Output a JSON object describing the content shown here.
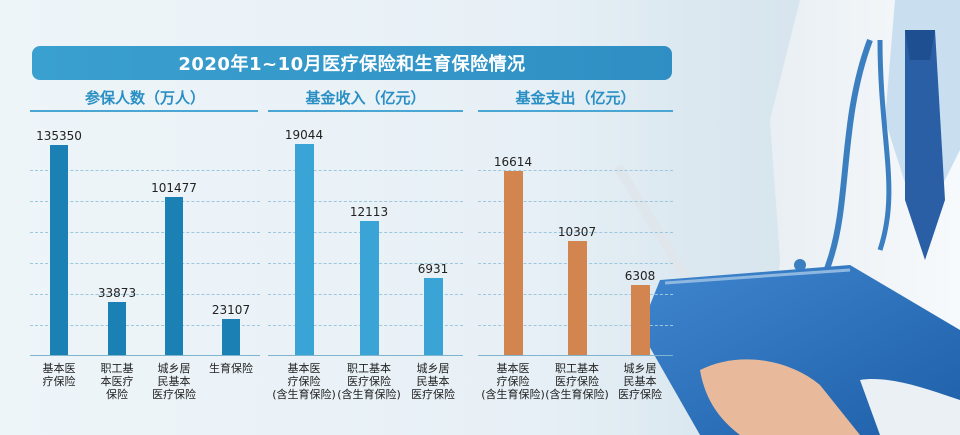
{
  "title": "2020年1~10月医疗保险和生育保险情况",
  "colors": {
    "blue_bar": "#1b80b4",
    "light_blue_bar": "#3aa4d6",
    "orange_bar": "#d2854e"
  },
  "chart_data": [
    {
      "type": "bar",
      "title": "参保人数（万人）",
      "categories": [
        "基本医\n疗保险",
        "职工基\n本医疗\n保险",
        "城乡居\n民基本\n医疗保险",
        "生育保险"
      ],
      "values": [
        135350,
        33873,
        101477,
        23107
      ],
      "value_labels": [
        "135350",
        "33873",
        "101477",
        "23107"
      ],
      "ylim": [
        0,
        150000
      ],
      "grid": true
    },
    {
      "type": "bar",
      "title": "基金收入（亿元）",
      "categories": [
        "基本医\n疗保险\n(含生育保险)",
        "职工基本\n医疗保险\n(含生育保险)",
        "城乡居\n民基本\n医疗保险"
      ],
      "values": [
        19044,
        12113,
        6931
      ],
      "value_labels": [
        "19044",
        "12113",
        "6931"
      ],
      "ylim": [
        0,
        21000
      ],
      "grid": true
    },
    {
      "type": "bar",
      "title": "基金支出（亿元）",
      "categories": [
        "基本医\n疗保险\n(含生育保险)",
        "职工基本\n医疗保险\n(含生育保险)",
        "城乡居\n民基本\n医疗保险"
      ],
      "values": [
        16614,
        10307,
        6308
      ],
      "value_labels": [
        "16614",
        "10307",
        "6308"
      ],
      "ylim": [
        0,
        21000
      ],
      "grid": true
    }
  ]
}
